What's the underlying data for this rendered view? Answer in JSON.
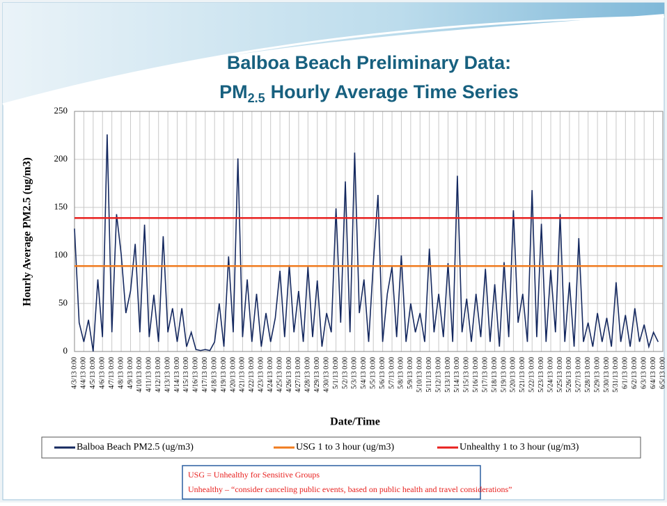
{
  "chart_data": {
    "type": "line",
    "title": "Balboa Beach Preliminary Data:",
    "subtitle_parts": [
      "PM",
      "2.5",
      "Hourly Average Time Series"
    ],
    "x_label": "Date/Time",
    "y_label": "Hourly Average PM2.5 (ug/m3)",
    "xlim": [
      0,
      63
    ],
    "ylim": [
      0,
      250
    ],
    "yticks": [
      0,
      50,
      100,
      150,
      200,
      250
    ],
    "xticks": [
      {
        "value": 0,
        "label": "4/3/13 0:00"
      },
      {
        "value": 1,
        "label": "4/4/13 0:00"
      },
      {
        "value": 2,
        "label": "4/5/13 0:00"
      },
      {
        "value": 3,
        "label": "4/6/13 0:00"
      },
      {
        "value": 4,
        "label": "4/7/13 0:00"
      },
      {
        "value": 5,
        "label": "4/8/13 0:00"
      },
      {
        "value": 6,
        "label": "4/9/13 0:00"
      },
      {
        "value": 7,
        "label": "4/10/13 0:00"
      },
      {
        "value": 8,
        "label": "4/11/13 0:00"
      },
      {
        "value": 9,
        "label": "4/12/13 0:00"
      },
      {
        "value": 10,
        "label": "4/13/13 0:00"
      },
      {
        "value": 11,
        "label": "4/14/13 0:00"
      },
      {
        "value": 12,
        "label": "4/15/13 0:00"
      },
      {
        "value": 13,
        "label": "4/16/13 0:00"
      },
      {
        "value": 14,
        "label": "4/17/13 0:00"
      },
      {
        "value": 15,
        "label": "4/18/13 0:00"
      },
      {
        "value": 16,
        "label": "4/19/13 0:00"
      },
      {
        "value": 17,
        "label": "4/20/13 0:00"
      },
      {
        "value": 18,
        "label": "4/21/13 0:00"
      },
      {
        "value": 19,
        "label": "4/22/13 0:00"
      },
      {
        "value": 20,
        "label": "4/23/13 0:00"
      },
      {
        "value": 21,
        "label": "4/24/13 0:00"
      },
      {
        "value": 22,
        "label": "4/25/13 0:00"
      },
      {
        "value": 23,
        "label": "4/26/13 0:00"
      },
      {
        "value": 24,
        "label": "4/27/13 0:00"
      },
      {
        "value": 25,
        "label": "4/28/13 0:00"
      },
      {
        "value": 26,
        "label": "4/29/13 0:00"
      },
      {
        "value": 27,
        "label": "4/30/13 0:00"
      },
      {
        "value": 28,
        "label": "5/1/13 0:00"
      },
      {
        "value": 29,
        "label": "5/2/13 0:00"
      },
      {
        "value": 30,
        "label": "5/3/13 0:00"
      },
      {
        "value": 31,
        "label": "5/4/13 0:00"
      },
      {
        "value": 32,
        "label": "5/5/13 0:00"
      },
      {
        "value": 33,
        "label": "5/6/13 0:00"
      },
      {
        "value": 34,
        "label": "5/7/13 0:00"
      },
      {
        "value": 35,
        "label": "5/8/13 0:00"
      },
      {
        "value": 36,
        "label": "5/9/13 0:00"
      },
      {
        "value": 37,
        "label": "5/10/13 0:00"
      },
      {
        "value": 38,
        "label": "5/11/13 0:00"
      },
      {
        "value": 39,
        "label": "5/12/13 0:00"
      },
      {
        "value": 40,
        "label": "5/13/13 0:00"
      },
      {
        "value": 41,
        "label": "5/14/13 0:00"
      },
      {
        "value": 42,
        "label": "5/15/13 0:00"
      },
      {
        "value": 43,
        "label": "5/16/13 0:00"
      },
      {
        "value": 44,
        "label": "5/17/13 0:00"
      },
      {
        "value": 45,
        "label": "5/18/13 0:00"
      },
      {
        "value": 46,
        "label": "5/19/13 0:00"
      },
      {
        "value": 47,
        "label": "5/20/13 0:00"
      },
      {
        "value": 48,
        "label": "5/21/13 0:00"
      },
      {
        "value": 49,
        "label": "5/22/13 0:00"
      },
      {
        "value": 50,
        "label": "5/23/13 0:00"
      },
      {
        "value": 51,
        "label": "5/24/13 0:00"
      },
      {
        "value": 52,
        "label": "5/25/13 0:00"
      },
      {
        "value": 53,
        "label": "5/26/13 0:00"
      },
      {
        "value": 54,
        "label": "5/27/13 0:00"
      },
      {
        "value": 55,
        "label": "5/28/13 0:00"
      },
      {
        "value": 56,
        "label": "5/29/13 0:00"
      },
      {
        "value": 57,
        "label": "5/30/13 0:00"
      },
      {
        "value": 58,
        "label": "5/31/13 0:00"
      },
      {
        "value": 59,
        "label": "6/1/13 0:00"
      },
      {
        "value": 60,
        "label": "6/2/13 0:00"
      },
      {
        "value": 61,
        "label": "6/3/13 0:00"
      },
      {
        "value": 62,
        "label": "6/4/13 0:00"
      },
      {
        "value": 63,
        "label": "6/5/13 0:00"
      }
    ],
    "grid": true,
    "series": [
      {
        "name": "Balboa Beach PM2.5 (ug/m3)",
        "color": "#14285f",
        "x": [
          0,
          0.5,
          1,
          1.5,
          2,
          2.5,
          3,
          3.5,
          4,
          4.5,
          5,
          5.5,
          6,
          6.5,
          7,
          7.5,
          8,
          8.5,
          9,
          9.5,
          10,
          10.5,
          11,
          11.5,
          12,
          12.5,
          13,
          13.5,
          14,
          14.5,
          15,
          15.5,
          16,
          16.5,
          17,
          17.5,
          18,
          18.5,
          19,
          19.5,
          20,
          20.5,
          21,
          21.5,
          22,
          22.5,
          23,
          23.5,
          24,
          24.5,
          25,
          25.5,
          26,
          26.5,
          27,
          27.5,
          28,
          28.5,
          29,
          29.5,
          30,
          30.5,
          31,
          31.5,
          32,
          32.5,
          33,
          33.5,
          34,
          34.5,
          35,
          35.5,
          36,
          36.5,
          37,
          37.5,
          38,
          38.5,
          39,
          39.5,
          40,
          40.5,
          41,
          41.5,
          42,
          42.5,
          43,
          43.5,
          44,
          44.5,
          45,
          45.5,
          46,
          46.5,
          47,
          47.5,
          48,
          48.5,
          49,
          49.5,
          50,
          50.5,
          51,
          51.5,
          52,
          52.5,
          53,
          53.5,
          54,
          54.5,
          55,
          55.5,
          56,
          56.5,
          57,
          57.5,
          58,
          58.5,
          59,
          59.5,
          60,
          60.5,
          61,
          61.5,
          62,
          62.5
        ],
        "values": [
          128,
          30,
          10,
          33,
          0,
          75,
          15,
          226,
          20,
          143,
          101,
          40,
          63,
          112,
          20,
          132,
          15,
          59,
          10,
          120,
          20,
          45,
          10,
          45,
          5,
          20,
          2,
          1,
          2,
          1,
          10,
          50,
          5,
          99,
          20,
          201,
          15,
          75,
          10,
          60,
          5,
          40,
          10,
          35,
          84,
          15,
          90,
          20,
          63,
          10,
          88,
          15,
          74,
          5,
          40,
          20,
          149,
          30,
          177,
          20,
          207,
          40,
          75,
          10,
          92,
          163,
          10,
          60,
          88,
          15,
          100,
          10,
          50,
          20,
          40,
          10,
          107,
          20,
          60,
          15,
          92,
          10,
          183,
          20,
          55,
          10,
          60,
          15,
          86,
          10,
          70,
          5,
          93,
          15,
          147,
          30,
          60,
          10,
          168,
          15,
          133,
          10,
          85,
          20,
          143,
          10,
          72,
          5,
          118,
          10,
          30,
          5,
          40,
          10,
          35,
          5,
          72,
          10,
          38,
          5,
          45,
          10,
          28,
          5,
          20,
          10
        ]
      },
      {
        "name": "USG 1 to 3 hour (ug/m3)",
        "color": "#f07b1e",
        "x": [
          0,
          63
        ],
        "values": [
          89,
          89
        ]
      },
      {
        "name": "Unhealthy 1 to 3 hour (ug/m3)",
        "color": "#e8201e",
        "x": [
          0,
          63
        ],
        "values": [
          139,
          139
        ]
      }
    ],
    "notes": [
      "USG = Unhealthy for Sensitive Groups",
      "Unhealthy – “consider canceling public events, based on public health and travel considerations”"
    ]
  }
}
